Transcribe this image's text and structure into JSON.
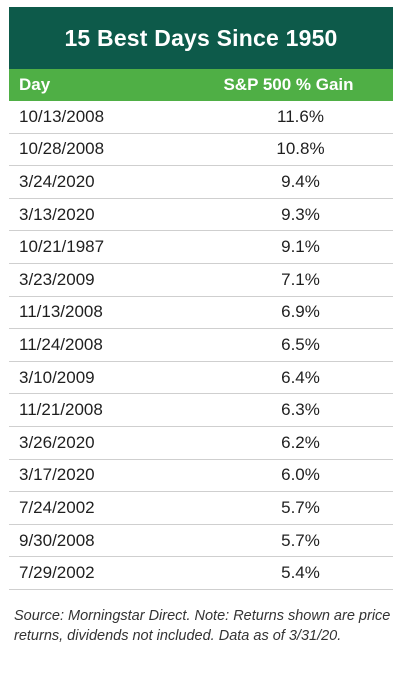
{
  "chart_data": {
    "type": "table",
    "title": "15 Best Days Since 1950",
    "columns": [
      "Day",
      "S&P 500 % Gain"
    ],
    "rows": [
      {
        "day": "10/13/2008",
        "gain": "11.6%"
      },
      {
        "day": "10/28/2008",
        "gain": "10.8%"
      },
      {
        "day": "3/24/2020",
        "gain": "9.4%"
      },
      {
        "day": "3/13/2020",
        "gain": "9.3%"
      },
      {
        "day": "10/21/1987",
        "gain": "9.1%"
      },
      {
        "day": "3/23/2009",
        "gain": "7.1%"
      },
      {
        "day": "11/13/2008",
        "gain": "6.9%"
      },
      {
        "day": "11/24/2008",
        "gain": "6.5%"
      },
      {
        "day": "3/10/2009",
        "gain": "6.4%"
      },
      {
        "day": "11/21/2008",
        "gain": "6.3%"
      },
      {
        "day": "3/26/2020",
        "gain": "6.2%"
      },
      {
        "day": "3/17/2020",
        "gain": "6.0%"
      },
      {
        "day": "7/24/2002",
        "gain": "5.7%"
      },
      {
        "day": "9/30/2008",
        "gain": "5.7%"
      },
      {
        "day": "7/29/2002",
        "gain": "5.4%"
      }
    ],
    "source": "Source: Morningstar Direct. Note: Returns shown are price returns, dividends not included. Data as of 3/31/20."
  },
  "colors": {
    "title_background": "#0d5a4a",
    "header_background": "#4faf45",
    "header_text": "#ffffff",
    "row_divider": "#cfcfcf"
  }
}
